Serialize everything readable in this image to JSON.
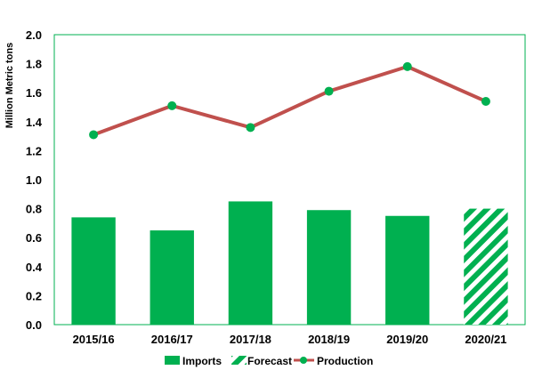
{
  "chart_data": {
    "type": "bar",
    "ylabel": "Million Metric tons",
    "xlabel": "",
    "ylim": [
      0,
      2.0
    ],
    "y_ticks": [
      "0.0",
      "0.2",
      "0.4",
      "0.6",
      "0.8",
      "1.0",
      "1.2",
      "1.4",
      "1.6",
      "1.8",
      "2.0"
    ],
    "categories": [
      "2015/16",
      "2016/17",
      "2017/18",
      "2018/19",
      "2019/20",
      "2020/21"
    ],
    "series": [
      {
        "name": "Imports",
        "type": "bar",
        "values": [
          0.74,
          0.65,
          0.85,
          0.79,
          0.75,
          null
        ]
      },
      {
        "name": "Forecast",
        "type": "bar",
        "pattern": "hatched",
        "values": [
          null,
          null,
          null,
          null,
          null,
          0.8
        ]
      },
      {
        "name": "Production",
        "type": "line",
        "values": [
          1.31,
          1.51,
          1.36,
          1.61,
          1.78,
          1.54
        ]
      }
    ],
    "grid": false,
    "legend_position": "bottom",
    "colors": {
      "bar": "#00b050",
      "line": "#c0504d",
      "marker": "#00b050",
      "plot_border": "#00b050"
    }
  }
}
